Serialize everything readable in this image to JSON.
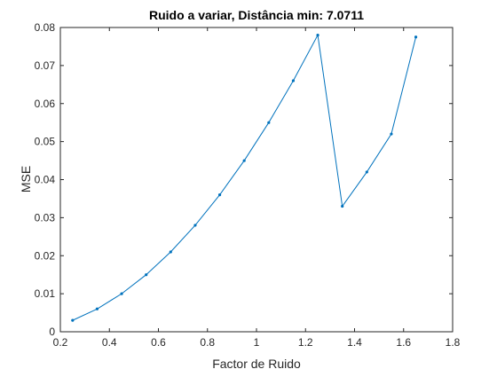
{
  "chart_data": {
    "type": "line",
    "title": "Ruido a variar, Distância min: 7.0711",
    "xlabel": "Factor de Ruido",
    "ylabel": "MSE",
    "xlim": [
      0.2,
      1.8
    ],
    "ylim": [
      0,
      0.08
    ],
    "grid": false,
    "line_color": "#0072bd",
    "x_ticks": [
      "0.2",
      "0.4",
      "0.6",
      "0.8",
      "1",
      "1.2",
      "1.4",
      "1.6",
      "1.8"
    ],
    "y_ticks": [
      "0",
      "0.01",
      "0.02",
      "0.03",
      "0.04",
      "0.05",
      "0.06",
      "0.07",
      "0.08"
    ],
    "series": [
      {
        "x": [
          0.25,
          0.35,
          0.45,
          0.55,
          0.65,
          0.75,
          0.85,
          0.95,
          1.05,
          1.15,
          1.25,
          1.35,
          1.45,
          1.55,
          1.65
        ],
        "y": [
          0.003,
          0.006,
          0.01,
          0.015,
          0.021,
          0.028,
          0.036,
          0.045,
          0.055,
          0.066,
          0.078,
          0.033,
          0.042,
          0.052,
          0.0775
        ]
      }
    ]
  }
}
